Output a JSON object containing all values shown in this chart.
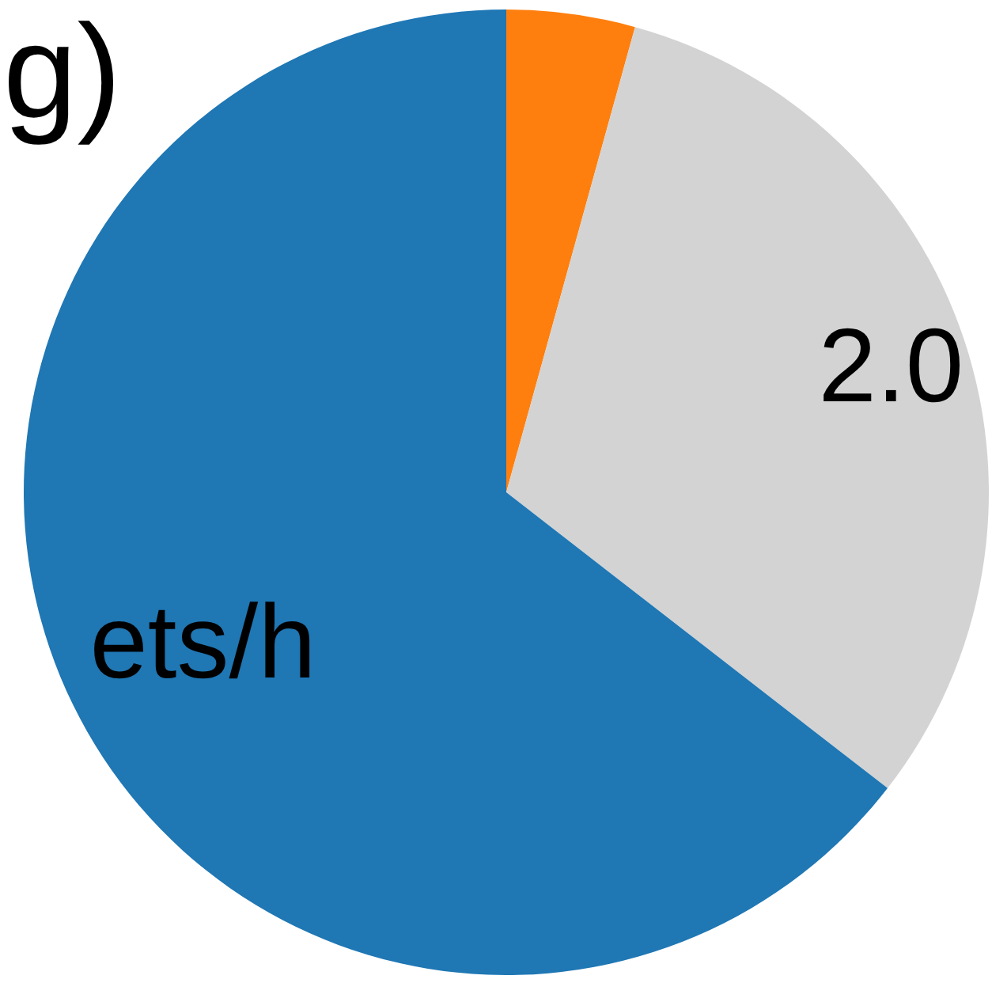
{
  "chart_data": {
    "type": "pie",
    "title": "g)",
    "categories": [
      null,
      "2.0",
      "ets/h"
    ],
    "values": [
      4.3,
      31.2,
      64.5
    ],
    "colors": [
      "#ff7f0e",
      "#d3d3d3",
      "#1f77b4"
    ]
  }
}
